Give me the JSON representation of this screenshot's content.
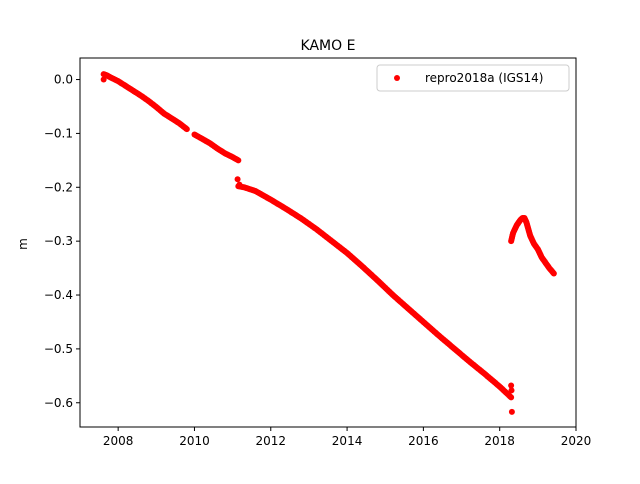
{
  "chart_data": {
    "type": "scatter",
    "title": "KAMO E",
    "xlabel": "",
    "ylabel": "m",
    "xlim": [
      2007.0,
      2020.0
    ],
    "ylim": [
      -0.645,
      0.04
    ],
    "x_ticks": [
      2008,
      2010,
      2012,
      2014,
      2016,
      2018,
      2020
    ],
    "x_tick_labels": [
      "2008",
      "2010",
      "2012",
      "2014",
      "2016",
      "2018",
      "2020"
    ],
    "y_ticks": [
      0.0,
      -0.1,
      -0.2,
      -0.3,
      -0.4,
      -0.5,
      -0.6
    ],
    "y_tick_labels": [
      "0.0",
      "−0.1",
      "−0.2",
      "−0.3",
      "−0.4",
      "−0.5",
      "−0.6"
    ],
    "grid": false,
    "legend_position": "top-right",
    "series": [
      {
        "name": "repro2018a (IGS14)",
        "color": "#ff0000",
        "marker": "circle",
        "segments": [
          {
            "x": [
              2007.62,
              2007.7,
              2007.8,
              2008.0,
              2008.2,
              2008.4,
              2008.6,
              2008.8,
              2009.0,
              2009.2,
              2009.4,
              2009.6,
              2009.8
            ],
            "y": [
              0.01,
              0.008,
              0.004,
              -0.003,
              -0.012,
              -0.021,
              -0.03,
              -0.04,
              -0.051,
              -0.063,
              -0.072,
              -0.081,
              -0.092
            ]
          },
          {
            "x": [
              2010.0,
              2010.2,
              2010.4,
              2010.6,
              2010.8,
              2011.0,
              2011.15
            ],
            "y": [
              -0.102,
              -0.11,
              -0.118,
              -0.128,
              -0.137,
              -0.144,
              -0.15
            ]
          },
          {
            "x": [
              2011.15,
              2011.3,
              2011.6,
              2012.0,
              2012.4,
              2012.8,
              2013.2,
              2013.6,
              2014.0,
              2014.4,
              2014.8,
              2015.2,
              2015.6,
              2016.0,
              2016.4,
              2016.8,
              2017.2,
              2017.6,
              2018.0,
              2018.3
            ],
            "y": [
              -0.198,
              -0.2,
              -0.207,
              -0.223,
              -0.24,
              -0.258,
              -0.278,
              -0.3,
              -0.322,
              -0.347,
              -0.373,
              -0.4,
              -0.425,
              -0.45,
              -0.475,
              -0.499,
              -0.523,
              -0.546,
              -0.57,
              -0.59
            ]
          },
          {
            "x": [
              2018.3,
              2018.35,
              2018.45,
              2018.55,
              2018.6,
              2018.65,
              2018.7,
              2018.8,
              2018.9,
              2019.0,
              2019.1,
              2019.2,
              2019.3,
              2019.42
            ],
            "y": [
              -0.3,
              -0.285,
              -0.27,
              -0.26,
              -0.257,
              -0.257,
              -0.265,
              -0.29,
              -0.305,
              -0.315,
              -0.33,
              -0.34,
              -0.35,
              -0.36
            ]
          }
        ],
        "outliers": {
          "x": [
            2007.62,
            2011.13,
            2011.18,
            2018.3,
            2018.31,
            2018.32
          ],
          "y": [
            0.0,
            -0.185,
            -0.195,
            -0.568,
            -0.577,
            -0.617
          ]
        }
      }
    ]
  }
}
